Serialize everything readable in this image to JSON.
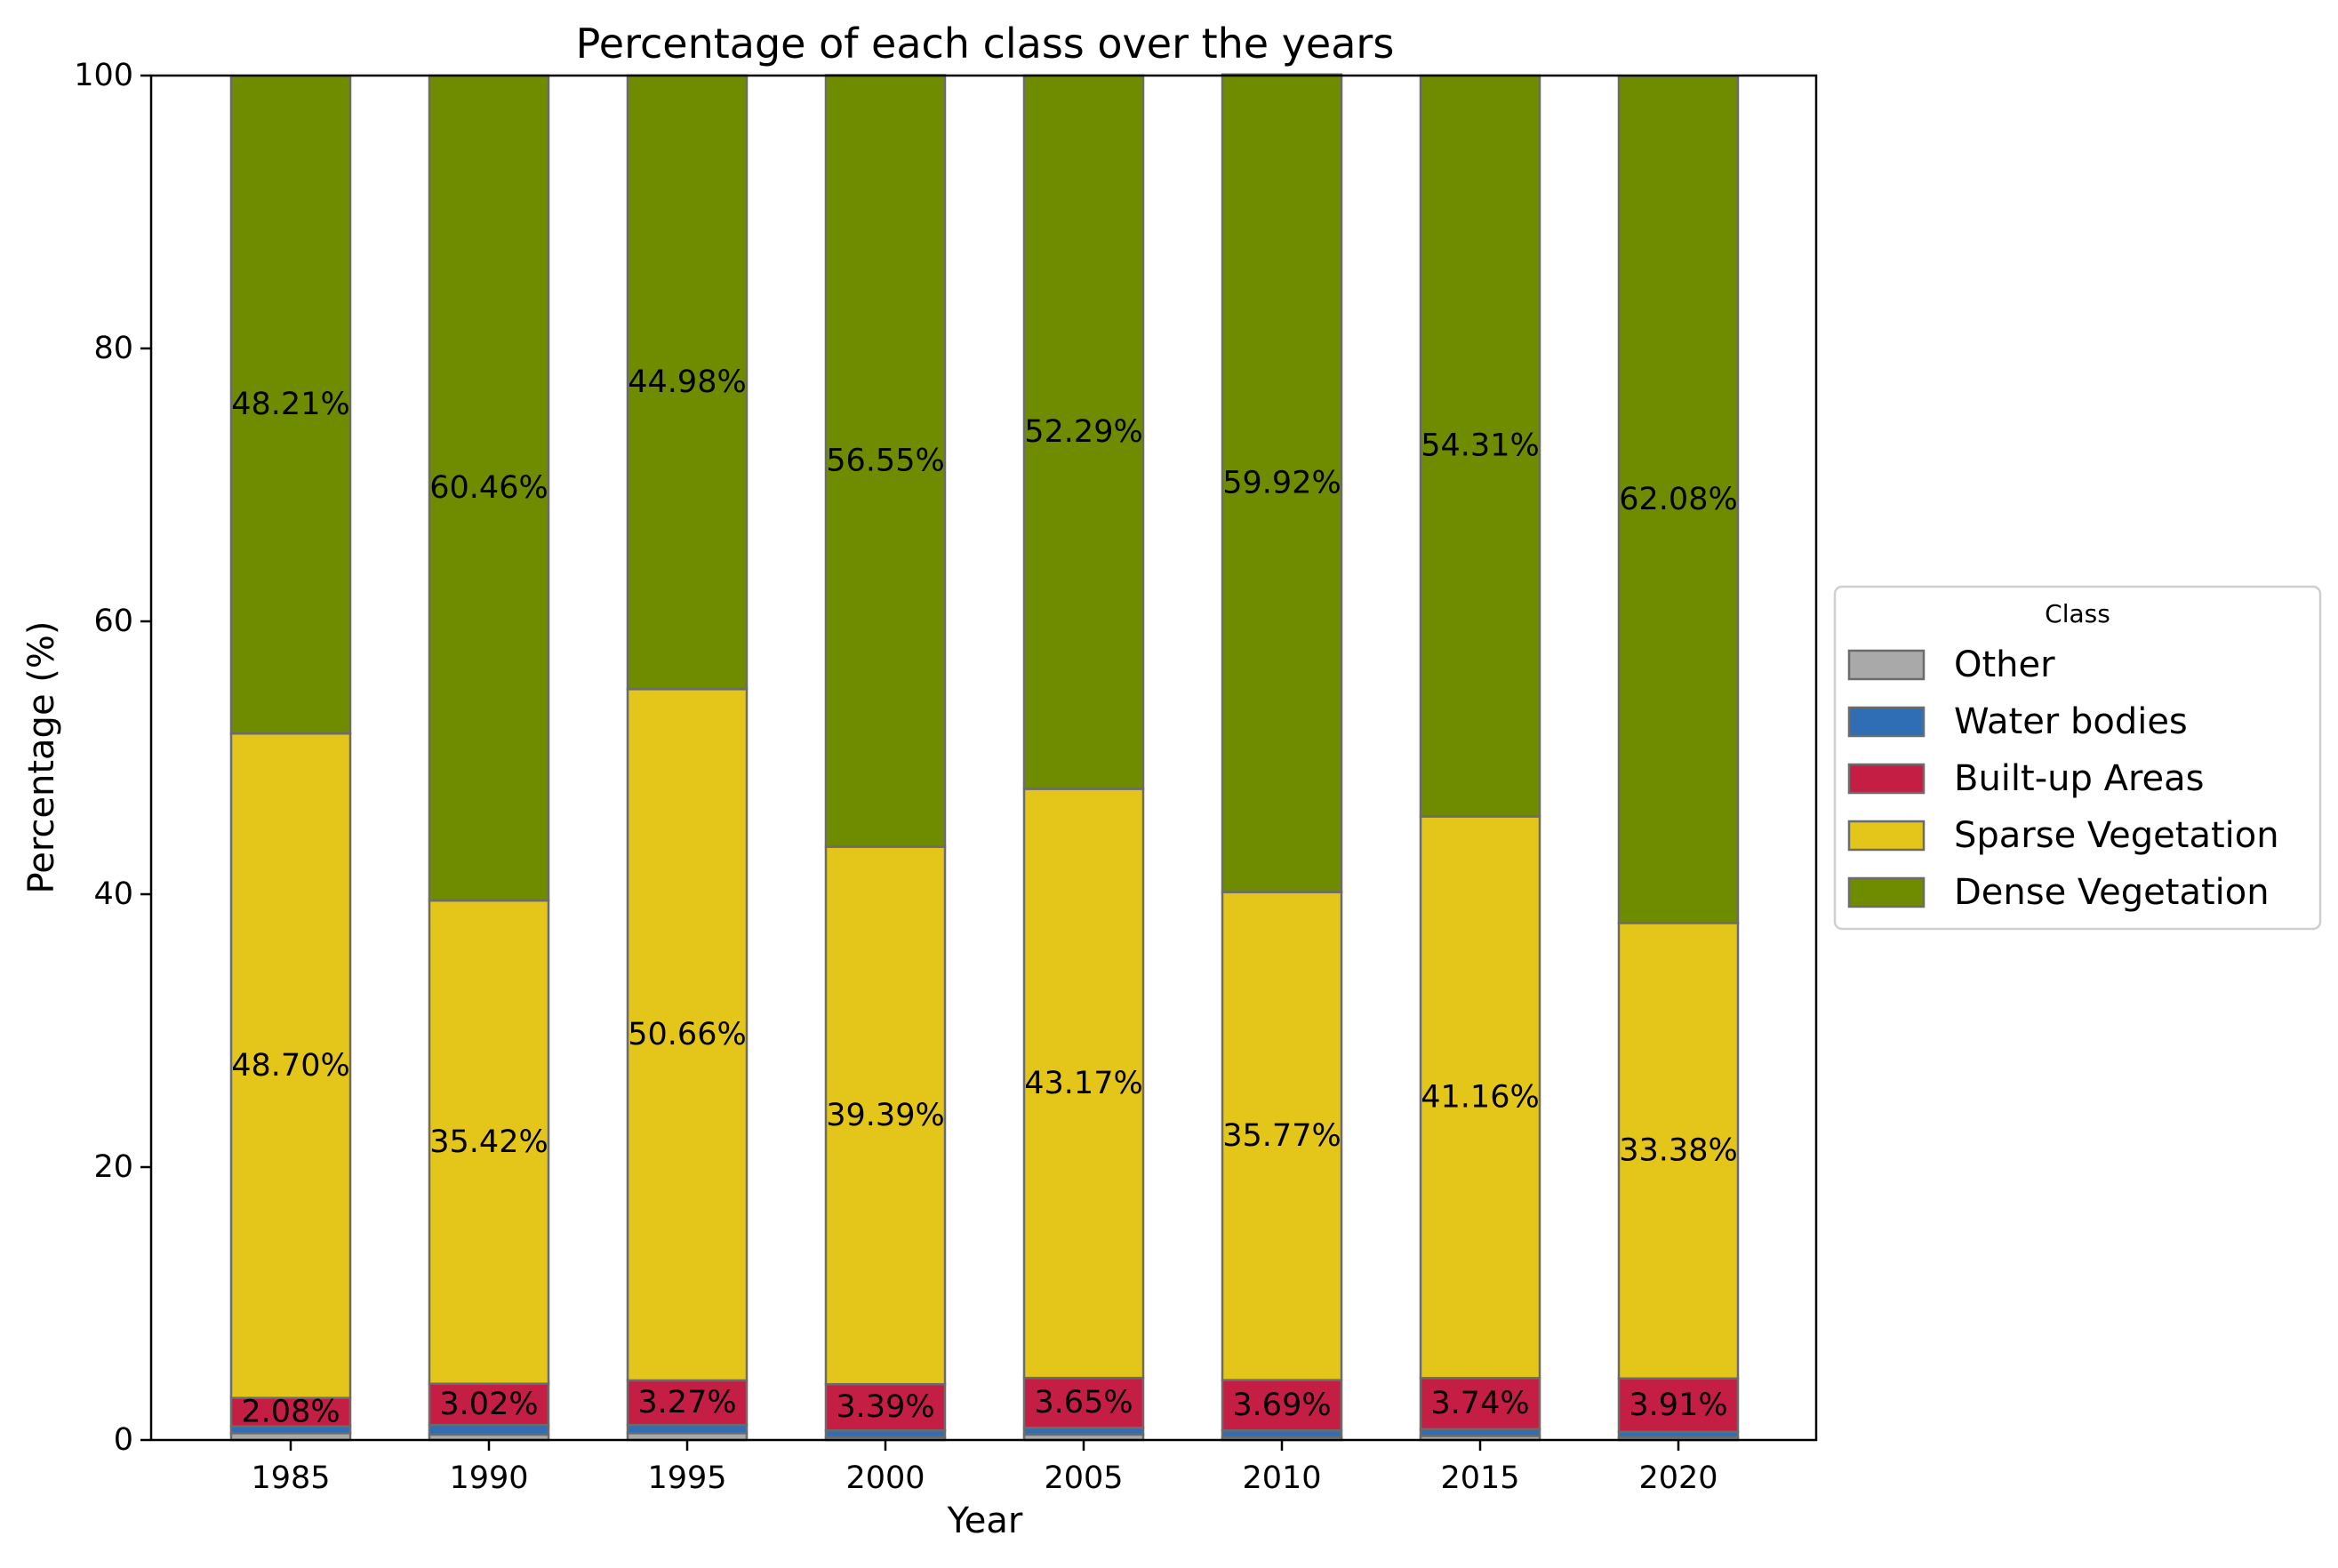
{
  "chart_data": {
    "type": "bar",
    "stacked": true,
    "title": "Percentage of each class over the years",
    "xlabel": "Year",
    "ylabel": "Percentage (%)",
    "ylim": [
      0,
      100
    ],
    "yticks": [
      "0",
      "20",
      "40",
      "60",
      "80",
      "100"
    ],
    "categories": [
      "1985",
      "1990",
      "1995",
      "2000",
      "2005",
      "2010",
      "2015",
      "2020"
    ],
    "grid": false,
    "legend": {
      "title": "Class",
      "placement": "center-right-outside"
    },
    "series": [
      {
        "name": "Other",
        "color": "#a9a9a9",
        "values": [
          0.5,
          0.4,
          0.5,
          0.2,
          0.4,
          0.2,
          0.3,
          0.2
        ],
        "labels": []
      },
      {
        "name": "Water bodies",
        "color": "#2f6eb5",
        "values": [
          0.5,
          0.7,
          0.6,
          0.5,
          0.5,
          0.5,
          0.5,
          0.4
        ],
        "labels": []
      },
      {
        "name": "Built-up Areas",
        "color": "#c41e44",
        "values": [
          2.08,
          3.02,
          3.27,
          3.39,
          3.65,
          3.69,
          3.74,
          3.91
        ],
        "labels": [
          "2.08%",
          "3.02%",
          "3.27%",
          "3.39%",
          "3.65%",
          "3.69%",
          "3.74%",
          "3.91%"
        ]
      },
      {
        "name": "Sparse Vegetation",
        "color": "#e3c619",
        "values": [
          48.7,
          35.42,
          50.66,
          39.39,
          43.17,
          35.77,
          41.16,
          33.38
        ],
        "labels": [
          "48.70%",
          "35.42%",
          "50.66%",
          "39.39%",
          "43.17%",
          "35.77%",
          "41.16%",
          "33.38%"
        ]
      },
      {
        "name": "Dense Vegetation",
        "color": "#6f8c00",
        "values": [
          48.21,
          60.46,
          44.98,
          56.55,
          52.29,
          59.92,
          54.31,
          62.08
        ],
        "labels": [
          "48.21%",
          "60.46%",
          "44.98%",
          "56.55%",
          "52.29%",
          "59.92%",
          "54.31%",
          "62.08%"
        ]
      }
    ]
  }
}
